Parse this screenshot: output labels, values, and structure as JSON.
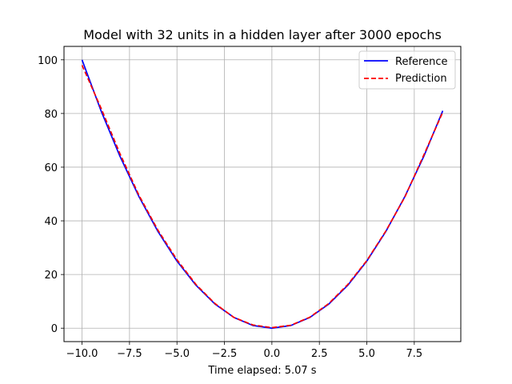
{
  "chart_data": {
    "type": "line",
    "title": "Model with 32 units in a hidden layer after 3000 epochs",
    "xlabel": "Time elapsed: 5.07 s",
    "ylabel": "",
    "xlim": [
      -10.95,
      9.95
    ],
    "ylim": [
      -5,
      105
    ],
    "x_ticks": [
      -10.0,
      -7.5,
      -5.0,
      -2.5,
      0.0,
      2.5,
      5.0,
      7.5
    ],
    "x_tick_labels": [
      "−10.0",
      "−7.5",
      "−5.0",
      "−2.5",
      "0.0",
      "2.5",
      "5.0",
      "7.5"
    ],
    "y_ticks": [
      0,
      20,
      40,
      60,
      80,
      100
    ],
    "y_tick_labels": [
      "0",
      "20",
      "40",
      "60",
      "80",
      "100"
    ],
    "grid": true,
    "legend_position": "top-right",
    "x": [
      -10,
      -9,
      -8,
      -7,
      -6,
      -5,
      -4,
      -3,
      -2,
      -1,
      0,
      1,
      2,
      3,
      4,
      5,
      6,
      7,
      8,
      9
    ],
    "series": [
      {
        "name": "Reference",
        "color": "#0000ff",
        "style": "solid",
        "values": [
          100,
          81,
          64,
          49,
          36,
          25,
          16,
          9,
          4,
          1,
          0,
          1,
          4,
          9,
          16,
          25,
          36,
          49,
          64,
          81
        ]
      },
      {
        "name": "Prediction",
        "color": "#ff0000",
        "style": "dashed",
        "values": [
          98,
          82,
          65,
          49.5,
          36.5,
          25.5,
          16.3,
          9.2,
          4,
          1.2,
          0.2,
          1.1,
          4.1,
          9.2,
          16.3,
          25.2,
          36.2,
          48.8,
          64.5,
          80.5
        ]
      }
    ]
  }
}
